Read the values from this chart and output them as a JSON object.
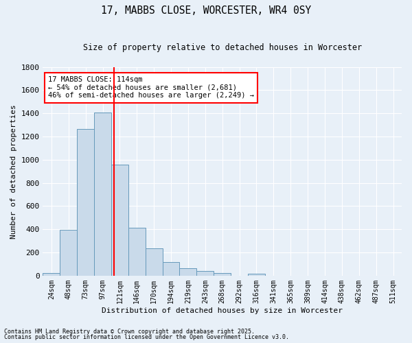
{
  "title": "17, MABBS CLOSE, WORCESTER, WR4 0SY",
  "subtitle": "Size of property relative to detached houses in Worcester",
  "xlabel": "Distribution of detached houses by size in Worcester",
  "ylabel": "Number of detached properties",
  "categories": [
    "24sqm",
    "48sqm",
    "73sqm",
    "97sqm",
    "121sqm",
    "146sqm",
    "170sqm",
    "194sqm",
    "219sqm",
    "243sqm",
    "268sqm",
    "292sqm",
    "316sqm",
    "341sqm",
    "365sqm",
    "389sqm",
    "414sqm",
    "438sqm",
    "462sqm",
    "487sqm",
    "511sqm"
  ],
  "values": [
    25,
    395,
    1265,
    1405,
    955,
    415,
    235,
    120,
    65,
    40,
    20,
    0,
    15,
    0,
    0,
    0,
    0,
    0,
    0,
    0,
    0
  ],
  "bar_color": "#c9daea",
  "bar_edge_color": "#6699bb",
  "bg_color": "#e8f0f8",
  "grid_color": "#ffffff",
  "vline_color": "red",
  "vline_pos": 3.68,
  "annotation_text": "17 MABBS CLOSE: 114sqm\n← 54% of detached houses are smaller (2,681)\n46% of semi-detached houses are larger (2,249) →",
  "annotation_box_color": "white",
  "annotation_box_edge": "red",
  "ylim": [
    0,
    1800
  ],
  "yticks": [
    0,
    200,
    400,
    600,
    800,
    1000,
    1200,
    1400,
    1600,
    1800
  ],
  "footnote1": "Contains HM Land Registry data © Crown copyright and database right 2025.",
  "footnote2": "Contains public sector information licensed under the Open Government Licence v3.0."
}
